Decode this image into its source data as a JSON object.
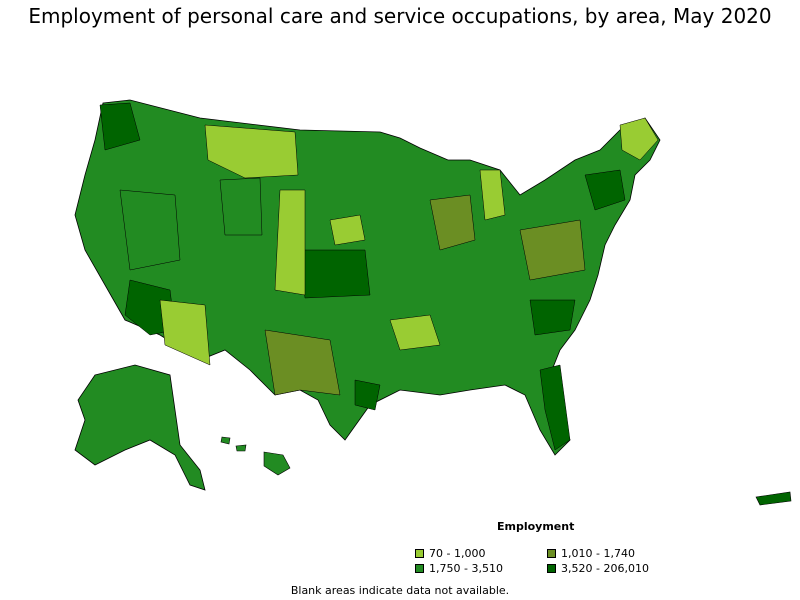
{
  "title": "Employment of personal care and service occupations, by area, May 2020",
  "legend": {
    "title": "Employment",
    "items": [
      {
        "label": "70 - 1,000",
        "color": "#99cc33"
      },
      {
        "label": "1,010 - 1,740",
        "color": "#6b8e23"
      },
      {
        "label": "1,750 - 3,510",
        "color": "#228b22"
      },
      {
        "label": "3,520 - 206,010",
        "color": "#006400"
      }
    ]
  },
  "note": "Blank areas indicate data not available."
}
